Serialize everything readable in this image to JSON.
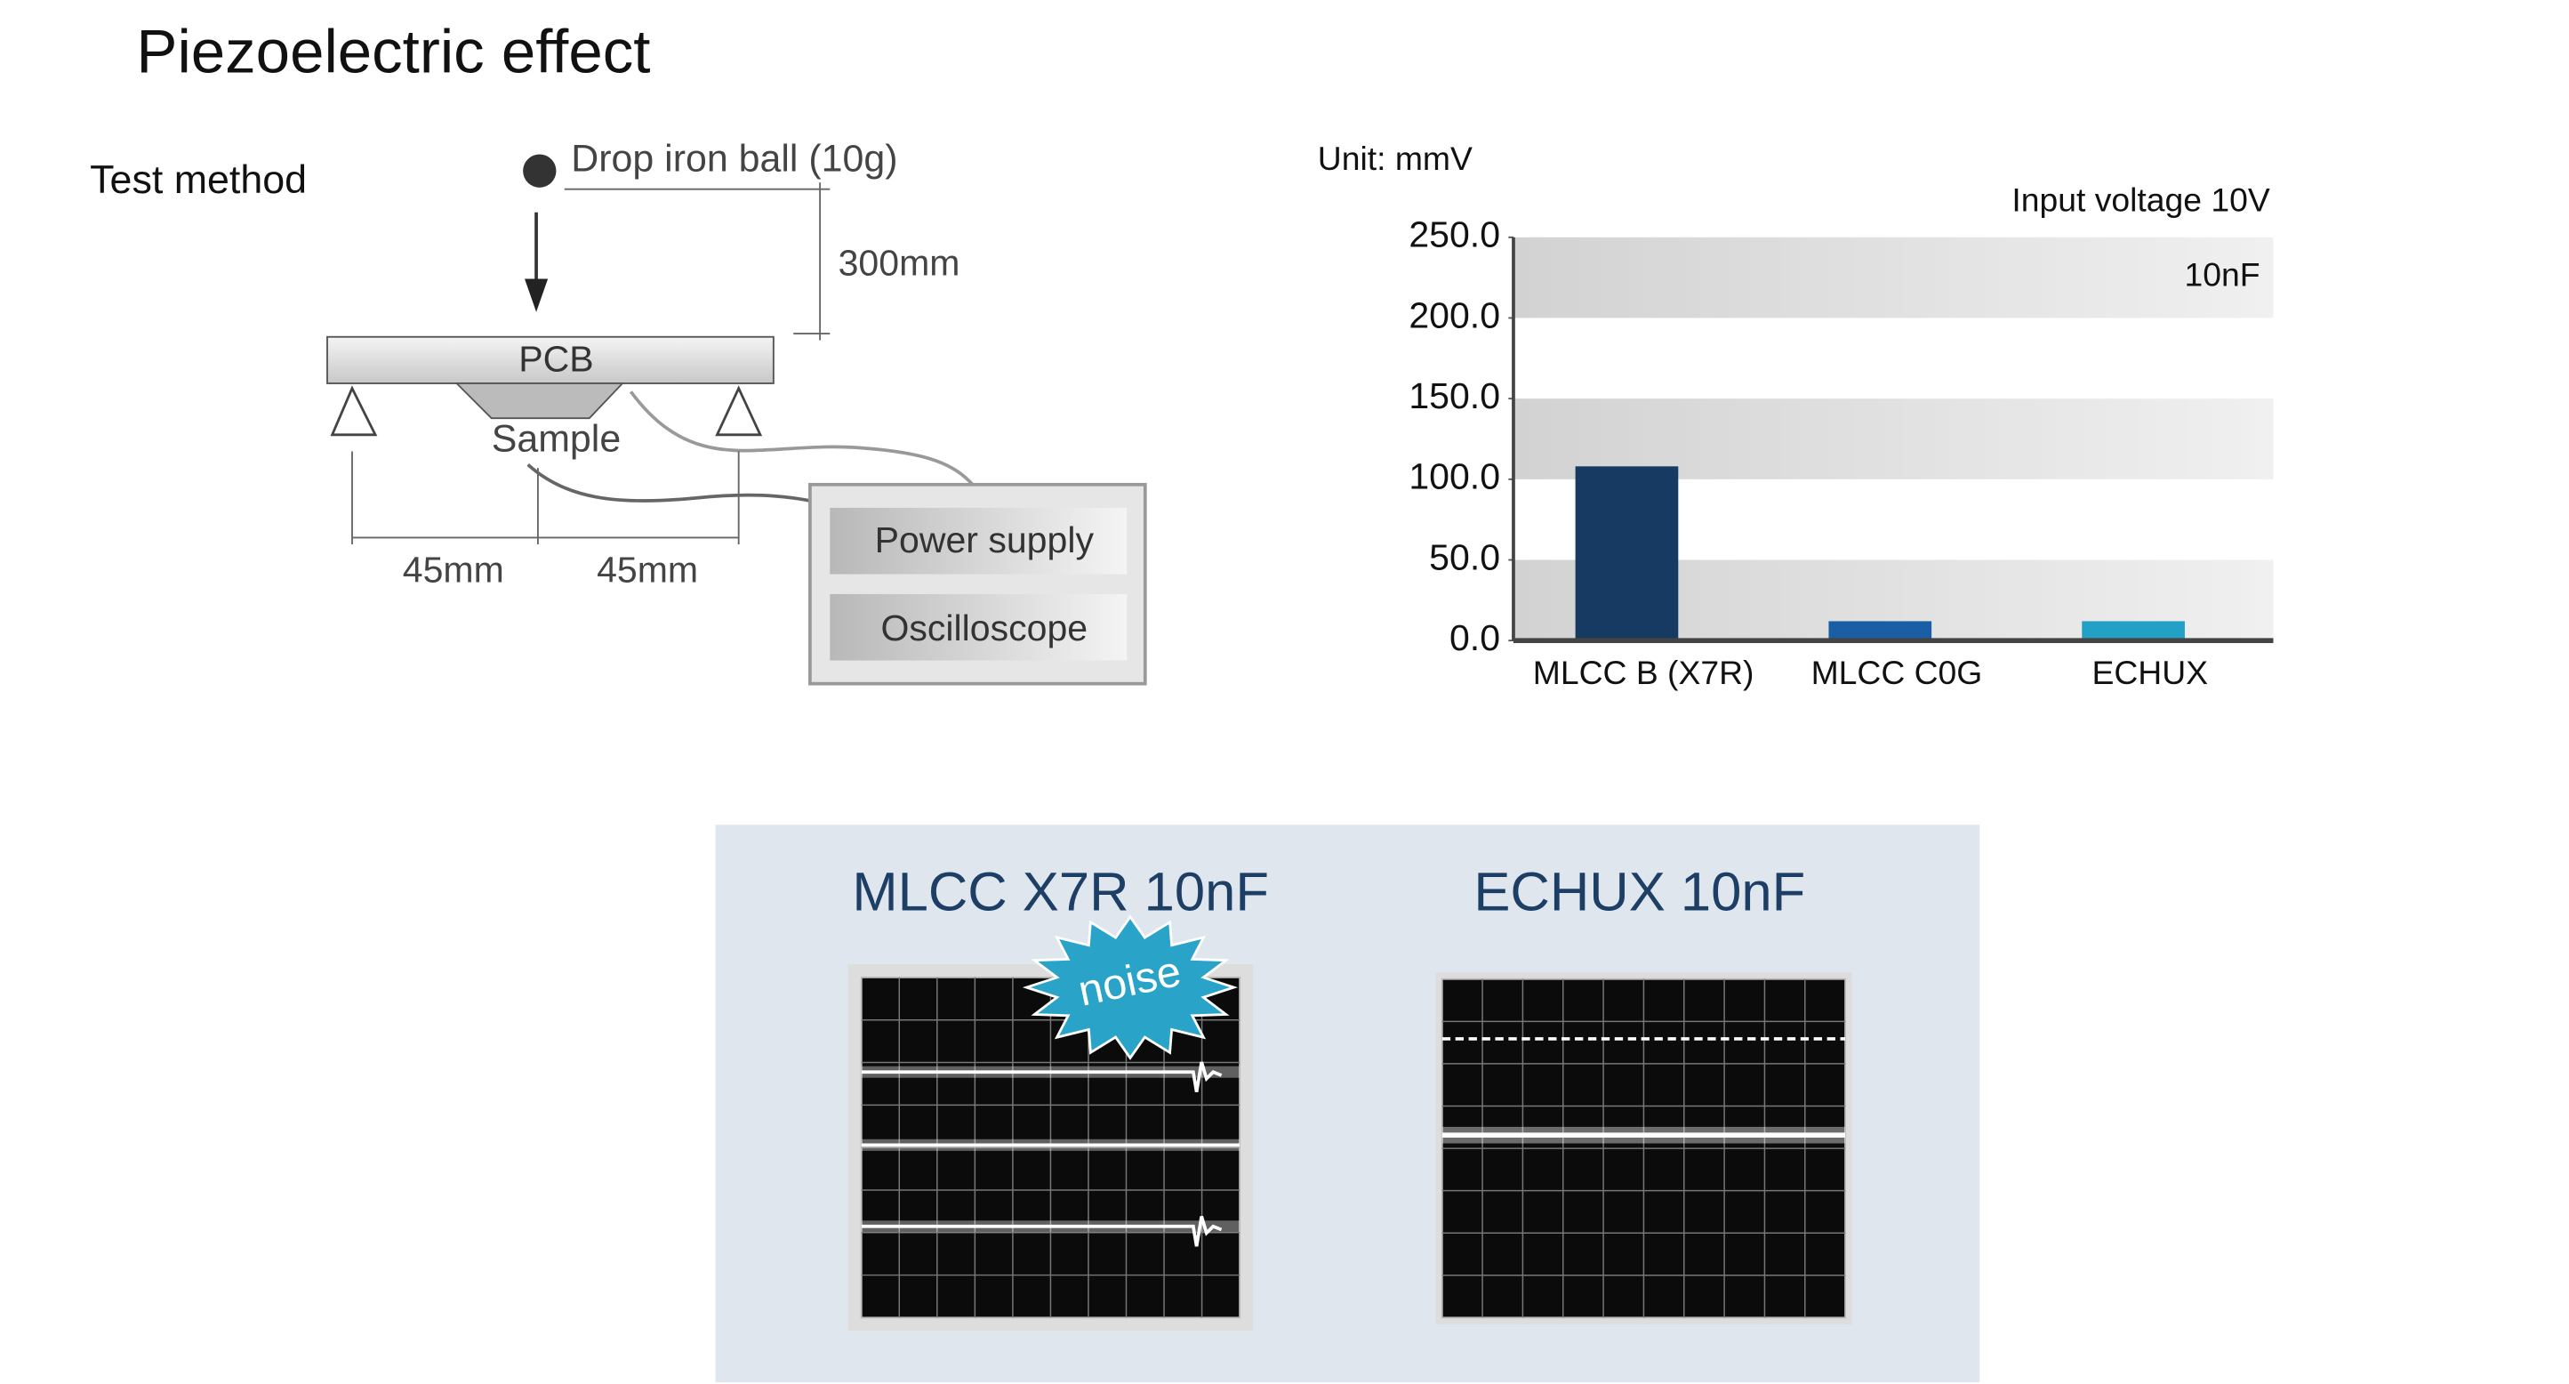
{
  "header": {
    "title": "Piezoelectric effect"
  },
  "method": {
    "label": "Test method",
    "ball": "Drop iron ball (10g)",
    "height": "300mm",
    "pcb": "PCB",
    "sample": "Sample",
    "span_left": "45mm",
    "span_right": "45mm",
    "power": "Power supply",
    "scope": "Oscilloscope"
  },
  "chart_data": {
    "type": "bar",
    "unit": "Unit: mmV",
    "annotation": "Input voltage 10V",
    "subtitle": "10nF",
    "categories": [
      "MLCC B (X7R)",
      "MLCC C0G",
      "ECHUX"
    ],
    "values": [
      108,
      12,
      12
    ],
    "colors": [
      "#173a63",
      "#1a5fa6",
      "#23a0c6"
    ],
    "ylim": [
      0,
      250
    ],
    "yticks": [
      {
        "value": 0,
        "label": "0.0"
      },
      {
        "value": 50,
        "label": "50.0"
      },
      {
        "value": 100,
        "label": "100.0"
      },
      {
        "value": 150,
        "label": "150.0"
      },
      {
        "value": 200,
        "label": "200.0"
      },
      {
        "value": 250,
        "label": "250.0"
      }
    ],
    "grid": true
  },
  "scopes": {
    "left": "MLCC X7R 10nF",
    "right": "ECHUX 10nF",
    "noise": "noise"
  }
}
